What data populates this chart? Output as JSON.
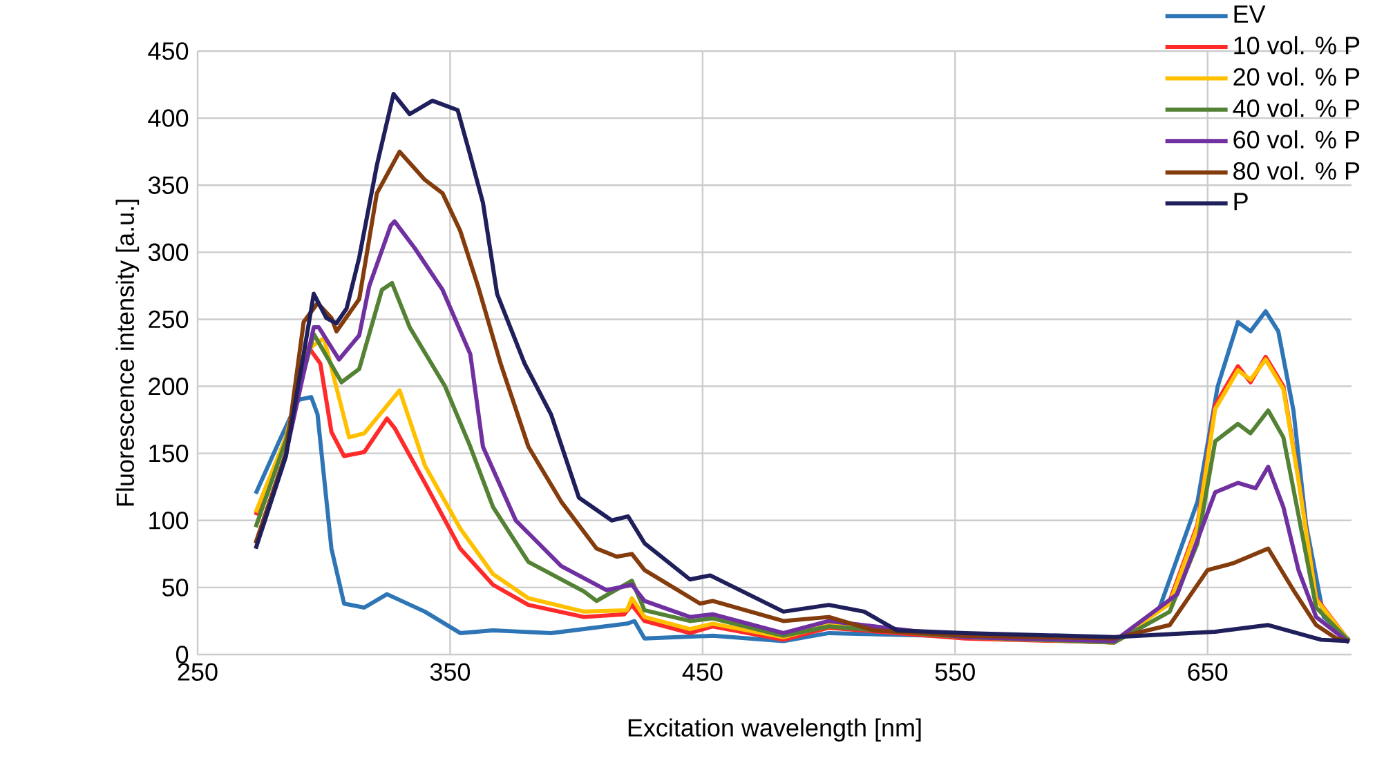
{
  "chart_data": {
    "type": "line",
    "xlabel": "Excitation wavelength [nm]",
    "ylabel": "Fluorescence intensity [a.u.]",
    "xlim": [
      250,
      707
    ],
    "ylim": [
      0,
      450
    ],
    "xticks": [
      250,
      350,
      450,
      550,
      650
    ],
    "yticks": [
      0,
      50,
      100,
      150,
      200,
      250,
      300,
      350,
      400,
      450
    ],
    "grid": true,
    "legend": "top right",
    "line_style": "solid",
    "marker": "none",
    "series": [
      {
        "name": "EV",
        "color": "#2e75b6",
        "x": [
          273,
          283,
          290,
          295,
          297.5,
          303,
          308,
          316,
          325,
          340,
          354,
          367,
          390,
          420,
          423,
          427,
          454,
          482,
          500,
          543,
          613,
          631,
          646,
          654,
          662,
          667,
          673,
          678,
          684,
          689,
          696,
          706
        ],
        "values": [
          120,
          162,
          190,
          192,
          179,
          79,
          38,
          35,
          45,
          32,
          16,
          18,
          16,
          23,
          25,
          12,
          14,
          10,
          16,
          14,
          9,
          35,
          114,
          200,
          248,
          241,
          256,
          241,
          182,
          97,
          28,
          11
        ]
      },
      {
        "name": "10 vol. % P",
        "color": "#ff2a2a",
        "x": [
          273,
          285,
          294,
          298.6,
          303,
          308,
          316,
          325,
          328,
          340,
          354,
          367,
          381,
          403,
          419,
          422,
          427,
          445,
          454,
          482,
          500,
          554,
          613,
          635,
          646,
          653,
          662,
          667,
          673,
          680,
          686,
          693,
          706
        ],
        "values": [
          104,
          162,
          229,
          217,
          166,
          148,
          151,
          176,
          169,
          128,
          79,
          52,
          37,
          28,
          30,
          37,
          25,
          16,
          21,
          11,
          20,
          12,
          9,
          40,
          97,
          186,
          215,
          203,
          222,
          200,
          131,
          42,
          10
        ]
      },
      {
        "name": "20 vol. % P",
        "color": "#ffc000",
        "x": [
          273,
          285,
          294,
          300,
          310,
          316,
          330,
          340,
          354,
          367,
          381,
          403,
          420,
          422,
          427,
          445,
          454,
          482,
          500,
          554,
          613,
          635,
          646,
          653,
          662,
          667,
          673,
          680,
          686,
          693,
          706
        ],
        "values": [
          106,
          162,
          228,
          236,
          162,
          165,
          197,
          141,
          94,
          60,
          42,
          32,
          33,
          42,
          28,
          19,
          23,
          13,
          22,
          13,
          9,
          38,
          95,
          183,
          212,
          205,
          220,
          198,
          130,
          41,
          10
        ]
      },
      {
        "name": "40 vol. % P",
        "color": "#548235",
        "x": [
          273,
          285,
          296,
          307,
          314,
          323,
          327,
          334,
          348,
          358,
          367,
          381,
          403,
          408,
          422,
          427,
          445,
          454,
          482,
          500,
          554,
          613,
          635,
          646,
          653,
          662,
          667,
          674,
          680,
          686,
          693,
          706
        ],
        "values": [
          95,
          160,
          239,
          203,
          213,
          272,
          277,
          244,
          200,
          155,
          110,
          69,
          47,
          40,
          55,
          33,
          25,
          27,
          14,
          21,
          13,
          9,
          32,
          83,
          159,
          172,
          165,
          182,
          162,
          104,
          35,
          10
        ]
      },
      {
        "name": "60 vol. % P",
        "color": "#7030a0",
        "x": [
          273,
          285,
          296,
          298,
          306,
          314,
          318,
          326.5,
          328,
          336,
          347,
          358,
          363,
          376,
          394,
          412,
          422,
          427,
          445,
          454,
          482,
          500,
          554,
          613,
          638,
          653,
          662,
          669,
          674,
          680,
          686,
          693,
          706
        ],
        "values": [
          83,
          150,
          244,
          244,
          220,
          238,
          275,
          320,
          323,
          303,
          272,
          224,
          155,
          100,
          66,
          48,
          52,
          40,
          28,
          30,
          16,
          25,
          13,
          10,
          45,
          121,
          128,
          124,
          140,
          110,
          63,
          28,
          9
        ]
      },
      {
        "name": "80 vol. % P",
        "color": "#843c0c",
        "x": [
          273,
          285,
          292,
          297.5,
          303,
          305,
          314,
          321,
          330,
          340,
          347,
          354,
          361,
          370,
          381,
          394,
          408,
          416,
          422,
          427,
          449,
          454,
          482,
          500,
          518,
          554,
          613,
          635,
          650,
          660,
          674,
          684,
          693,
          701,
          706
        ],
        "values": [
          83,
          150,
          248,
          262,
          251,
          241,
          265,
          344,
          375,
          354,
          344,
          316,
          275,
          217,
          155,
          114,
          79,
          73,
          75,
          63,
          38,
          40,
          25,
          28,
          18,
          14,
          12,
          22,
          63,
          68,
          79,
          48,
          22,
          12,
          10
        ]
      },
      {
        "name": "P",
        "color": "#1f1f5c",
        "x": [
          273,
          285,
          292,
          296,
          301,
          305,
          309,
          314,
          321,
          327.6,
          334,
          343,
          353,
          358,
          363,
          368.6,
          379.5,
          390,
          401,
          414,
          420.5,
          427,
          445,
          453,
          482,
          500,
          514,
          527,
          554,
          613,
          653,
          674,
          695,
          706
        ],
        "values": [
          79,
          148,
          224,
          269,
          251,
          247,
          258,
          296,
          365,
          418,
          403,
          413,
          406,
          372,
          337,
          269,
          217,
          179,
          117,
          100,
          103,
          83,
          56,
          59,
          32,
          37,
          32,
          18,
          16,
          13,
          17,
          22,
          11,
          10
        ]
      }
    ]
  }
}
